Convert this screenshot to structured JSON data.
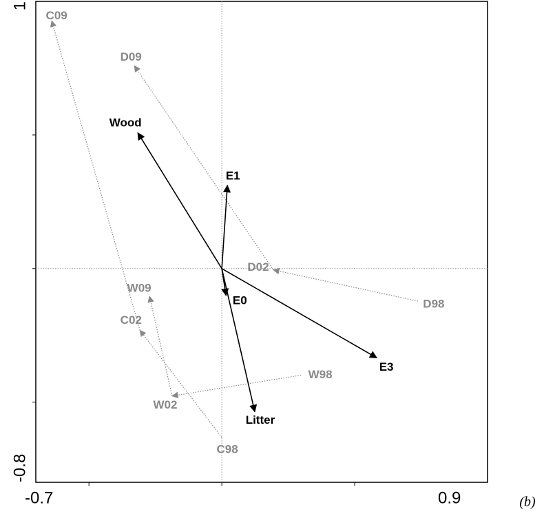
{
  "chart_data": {
    "type": "biplot",
    "xlim": [
      -0.7,
      1.0
    ],
    "ylim": [
      -0.8,
      1.0
    ],
    "xticks": [
      -0.7,
      0.9
    ],
    "yticks": [
      -0.8,
      1.0
    ],
    "xminorticks": [
      -0.5,
      0,
      0.5
    ],
    "yminorticks": [
      -0.5,
      0,
      0.5
    ],
    "vectors": {
      "color": "#000000",
      "labels": [
        "Wood",
        "E1",
        "E0",
        "E3",
        "Litter"
      ],
      "x": [
        -0.316,
        0.021,
        0.016,
        0.583,
        0.124
      ],
      "y": [
        0.508,
        0.311,
        -0.101,
        -0.334,
        -0.536
      ]
    },
    "series": [
      {
        "color": "#888888",
        "labels": [
          "D98",
          "D02",
          "D09"
        ],
        "x": [
          0.738,
          0.194,
          -0.329
        ],
        "y": [
          -0.122,
          -0.005,
          0.759
        ]
      },
      {
        "color": "#888888",
        "labels": [
          "C98",
          "C02",
          "C09"
        ],
        "x": [
          0.0,
          -0.308,
          -0.64
        ],
        "y": [
          -0.632,
          -0.231,
          0.927
        ]
      },
      {
        "color": "#888888",
        "labels": [
          "W98",
          "W02",
          "W09"
        ],
        "x": [
          0.298,
          -0.187,
          -0.272
        ],
        "y": [
          -0.399,
          -0.477,
          -0.104
        ]
      }
    ],
    "annotation": "(b)"
  }
}
